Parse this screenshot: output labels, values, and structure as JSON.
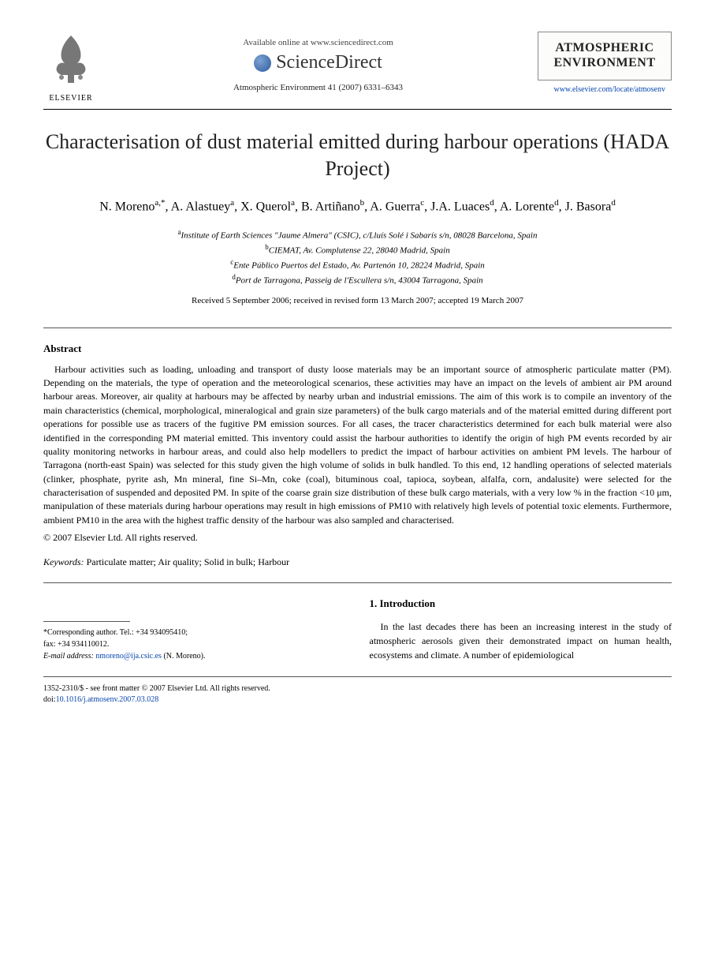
{
  "header": {
    "publisher": "ELSEVIER",
    "available_online": "Available online at www.sciencedirect.com",
    "sciencedirect": "ScienceDirect",
    "journal_ref": "Atmospheric Environment 41 (2007) 6331–6343",
    "journal_name_line1": "ATMOSPHERIC",
    "journal_name_line2": "ENVIRONMENT",
    "journal_link": "www.elsevier.com/locate/atmosenv"
  },
  "title": "Characterisation of dust material emitted during harbour operations (HADA Project)",
  "authors_html": "N. Moreno<sup>a,*</sup>, A. Alastuey<sup>a</sup>, X. Querol<sup>a</sup>, B. Artiñano<sup>b</sup>, A. Guerra<sup>c</sup>, J.A. Luaces<sup>d</sup>, A. Lorente<sup>d</sup>, J. Basora<sup>d</sup>",
  "affiliations": [
    {
      "sup": "a",
      "text": "Institute of Earth Sciences \"Jaume Almera\" (CSIC), c/Lluís Solé i Sabarís s/n, 08028 Barcelona, Spain"
    },
    {
      "sup": "b",
      "text": "CIEMAT, Av. Complutense 22, 28040 Madrid, Spain"
    },
    {
      "sup": "c",
      "text": "Ente Público Puertos del Estado, Av. Partenón 10, 28224 Madrid, Spain"
    },
    {
      "sup": "d",
      "text": "Port de Tarragona, Passeig de l'Escullera s/n, 43004 Tarragona, Spain"
    }
  ],
  "dates": "Received 5 September 2006; received in revised form 13 March 2007; accepted 19 March 2007",
  "abstract": {
    "heading": "Abstract",
    "text": "Harbour activities such as loading, unloading and transport of dusty loose materials may be an important source of atmospheric particulate matter (PM). Depending on the materials, the type of operation and the meteorological scenarios, these activities may have an impact on the levels of ambient air PM around harbour areas. Moreover, air quality at harbours may be affected by nearby urban and industrial emissions. The aim of this work is to compile an inventory of the main characteristics (chemical, morphological, mineralogical and grain size parameters) of the bulk cargo materials and of the material emitted during different port operations for possible use as tracers of the fugitive PM emission sources. For all cases, the tracer characteristics determined for each bulk material were also identified in the corresponding PM material emitted. This inventory could assist the harbour authorities to identify the origin of high PM events recorded by air quality monitoring networks in harbour areas, and could also help modellers to predict the impact of harbour activities on ambient PM levels. The harbour of Tarragona (north-east Spain) was selected for this study given the high volume of solids in bulk handled. To this end, 12 handling operations of selected materials (clinker, phosphate, pyrite ash, Mn mineral, fine Si–Mn, coke (coal), bituminous coal, tapioca, soybean, alfalfa, corn, andalusite) were selected for the characterisation of suspended and deposited PM. In spite of the coarse grain size distribution of these bulk cargo materials, with a very low % in the fraction <10 μm, manipulation of these materials during harbour operations may result in high emissions of PM10 with relatively high levels of potential toxic elements. Furthermore, ambient PM10 in the area with the highest traffic density of the harbour was also sampled and characterised.",
    "copyright": "© 2007 Elsevier Ltd. All rights reserved."
  },
  "keywords": {
    "label": "Keywords:",
    "text": " Particulate matter; Air quality; Solid in bulk; Harbour"
  },
  "section1": {
    "heading": "1. Introduction",
    "text": "In the last decades there has been an increasing interest in the study of atmospheric aerosols given their demonstrated impact on human health, ecosystems and climate. A number of epidemiological"
  },
  "footnote": {
    "corresponding": "*Corresponding author. Tel.: +34 934095410;",
    "fax": "fax: +34 934110012.",
    "email_label": "E-mail address:",
    "email": "nmoreno@ija.csic.es",
    "email_name": "(N. Moreno)."
  },
  "bottom": {
    "front_matter": "1352-2310/$ - see front matter © 2007 Elsevier Ltd. All rights reserved.",
    "doi_label": "doi:",
    "doi": "10.1016/j.atmosenv.2007.03.028"
  }
}
